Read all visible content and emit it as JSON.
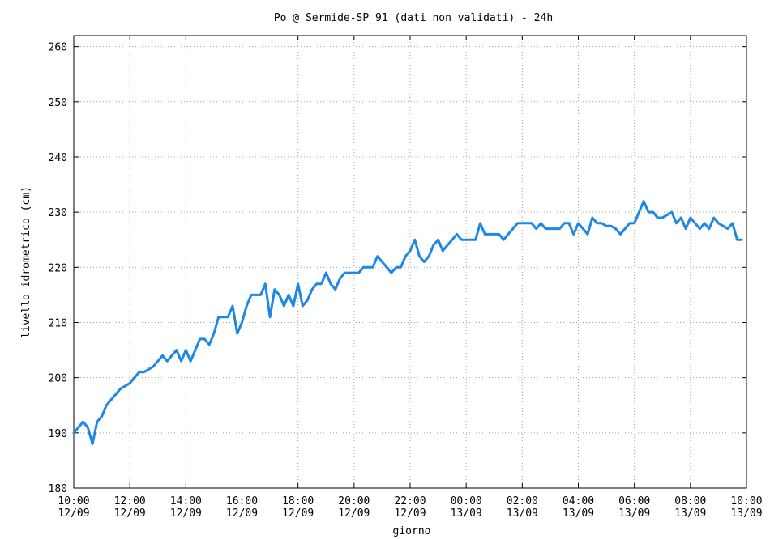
{
  "chart_data": {
    "type": "line",
    "title": "Po @ Sermide-SP_91 (dati non validati) - 24h",
    "xlabel": "giorno",
    "ylabel": "livello idrometrico (cm)",
    "ylim": [
      180,
      262
    ],
    "yticks": [
      180,
      190,
      200,
      210,
      220,
      230,
      240,
      250,
      260
    ],
    "xlim": [
      "2012-09-12 10:00",
      "2012-09-13 10:00"
    ],
    "xticks": [
      {
        "time": "10:00",
        "date": "12/09"
      },
      {
        "time": "12:00",
        "date": "12/09"
      },
      {
        "time": "14:00",
        "date": "12/09"
      },
      {
        "time": "16:00",
        "date": "12/09"
      },
      {
        "time": "18:00",
        "date": "12/09"
      },
      {
        "time": "20:00",
        "date": "12/09"
      },
      {
        "time": "22:00",
        "date": "12/09"
      },
      {
        "time": "00:00",
        "date": "13/09"
      },
      {
        "time": "02:00",
        "date": "13/09"
      },
      {
        "time": "04:00",
        "date": "13/09"
      },
      {
        "time": "06:00",
        "date": "13/09"
      },
      {
        "time": "08:00",
        "date": "13/09"
      },
      {
        "time": "10:00",
        "date": "13/09"
      }
    ],
    "grid": true,
    "series": [
      {
        "color": "#1e88e5",
        "x": [
          "12/09 10:00",
          "12/09 10:10",
          "12/09 10:20",
          "12/09 10:30",
          "12/09 10:40",
          "12/09 10:50",
          "12/09 11:00",
          "12/09 11:10",
          "12/09 11:20",
          "12/09 11:30",
          "12/09 11:40",
          "12/09 11:50",
          "12/09 12:00",
          "12/09 12:10",
          "12/09 12:20",
          "12/09 12:30",
          "12/09 12:40",
          "12/09 12:50",
          "12/09 13:00",
          "12/09 13:10",
          "12/09 13:20",
          "12/09 13:30",
          "12/09 13:40",
          "12/09 13:50",
          "12/09 14:00",
          "12/09 14:10",
          "12/09 14:20",
          "12/09 14:30",
          "12/09 14:40",
          "12/09 14:50",
          "12/09 15:00",
          "12/09 15:10",
          "12/09 15:20",
          "12/09 15:30",
          "12/09 15:40",
          "12/09 15:50",
          "12/09 16:00",
          "12/09 16:10",
          "12/09 16:20",
          "12/09 16:30",
          "12/09 16:40",
          "12/09 16:50",
          "12/09 17:00",
          "12/09 17:10",
          "12/09 17:20",
          "12/09 17:30",
          "12/09 17:40",
          "12/09 17:50",
          "12/09 18:00",
          "12/09 18:10",
          "12/09 18:20",
          "12/09 18:30",
          "12/09 18:40",
          "12/09 18:50",
          "12/09 19:00",
          "12/09 19:10",
          "12/09 19:20",
          "12/09 19:30",
          "12/09 19:40",
          "12/09 19:50",
          "12/09 20:00",
          "12/09 20:10",
          "12/09 20:20",
          "12/09 20:30",
          "12/09 20:40",
          "12/09 20:50",
          "12/09 21:00",
          "12/09 21:10",
          "12/09 21:20",
          "12/09 21:30",
          "12/09 21:40",
          "12/09 21:50",
          "12/09 22:00",
          "12/09 22:10",
          "12/09 22:20",
          "12/09 22:30",
          "12/09 22:40",
          "12/09 22:50",
          "12/09 23:00",
          "12/09 23:10",
          "12/09 23:20",
          "12/09 23:30",
          "12/09 23:40",
          "12/09 23:50",
          "13/09 00:00",
          "13/09 00:10",
          "13/09 00:20",
          "13/09 00:30",
          "13/09 00:40",
          "13/09 00:50",
          "13/09 01:00",
          "13/09 01:10",
          "13/09 01:20",
          "13/09 01:30",
          "13/09 01:40",
          "13/09 01:50",
          "13/09 02:00",
          "13/09 02:10",
          "13/09 02:20",
          "13/09 02:30",
          "13/09 02:40",
          "13/09 02:50",
          "13/09 03:00",
          "13/09 03:10",
          "13/09 03:20",
          "13/09 03:30",
          "13/09 03:40",
          "13/09 03:50",
          "13/09 04:00",
          "13/09 04:10",
          "13/09 04:20",
          "13/09 04:30",
          "13/09 04:40",
          "13/09 04:50",
          "13/09 05:00",
          "13/09 05:10",
          "13/09 05:20",
          "13/09 05:30",
          "13/09 05:40",
          "13/09 05:50",
          "13/09 06:00",
          "13/09 06:10",
          "13/09 06:20",
          "13/09 06:30",
          "13/09 06:40",
          "13/09 06:50",
          "13/09 07:00",
          "13/09 07:10",
          "13/09 07:20",
          "13/09 07:30",
          "13/09 07:40",
          "13/09 07:50",
          "13/09 08:00",
          "13/09 08:10",
          "13/09 08:20",
          "13/09 08:30",
          "13/09 08:40",
          "13/09 08:50",
          "13/09 09:00",
          "13/09 09:10",
          "13/09 09:20",
          "13/09 09:30",
          "13/09 09:40",
          "13/09 09:50"
        ],
        "values": [
          190,
          191,
          192,
          191,
          188,
          192,
          193,
          195,
          196,
          197,
          198,
          198.5,
          199,
          200,
          201,
          201,
          201.5,
          202,
          203,
          204,
          203,
          204,
          205,
          203,
          205,
          203,
          205,
          207,
          207,
          206,
          208,
          211,
          211,
          211,
          213,
          208,
          210,
          213,
          215,
          215,
          215,
          217,
          211,
          216,
          215,
          213,
          215,
          213,
          217,
          213,
          214,
          216,
          217,
          217,
          219,
          217,
          216,
          218,
          219,
          219,
          219,
          219,
          220,
          220,
          220,
          222,
          221,
          220,
          219,
          220,
          220,
          222,
          223,
          225,
          222,
          221,
          222,
          224,
          225,
          223,
          224,
          225,
          226,
          225,
          225,
          225,
          225,
          228,
          226,
          226,
          226,
          226,
          225,
          226,
          227,
          228,
          228,
          228,
          228,
          227,
          228,
          227,
          227,
          227,
          227,
          228,
          228,
          226,
          228,
          227,
          226,
          229,
          228,
          228,
          227.5,
          227.5,
          227,
          226,
          227,
          228,
          228,
          230,
          232,
          230,
          230,
          229,
          229,
          229.5,
          230,
          228,
          229,
          227,
          229,
          228,
          227,
          228,
          227,
          229,
          228,
          227.5,
          227,
          228,
          225,
          225
        ]
      }
    ]
  }
}
